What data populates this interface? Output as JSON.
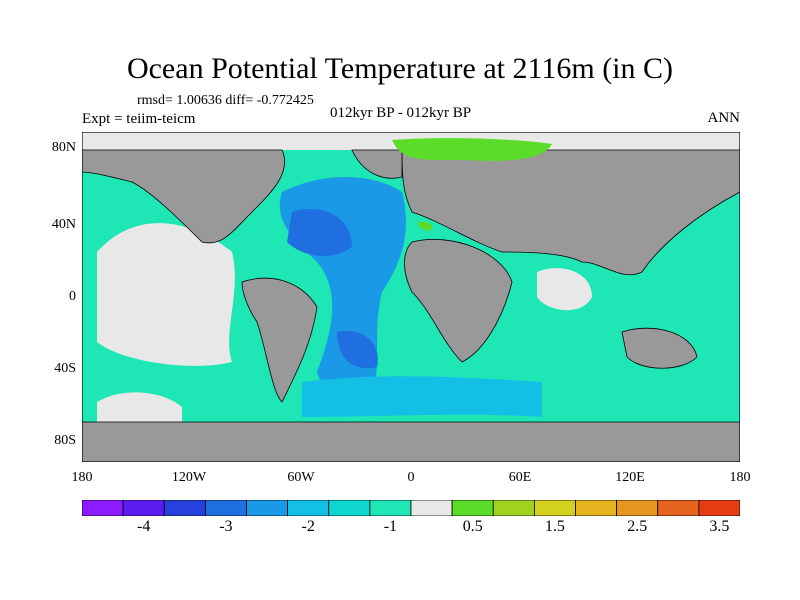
{
  "title": "Ocean Potential Temperature at 2116m (in C)",
  "stats_text": "rmsd= 1.00636 diff= -0.772425",
  "experiment_text": "Expt = teiim-teicm",
  "period_text": "012kyr BP - 012kyr BP",
  "season_text": "ANN",
  "lat_labels": [
    "80N",
    "40N",
    "0",
    "40S",
    "80S"
  ],
  "lon_labels": [
    "180",
    "120W",
    "60W",
    "0",
    "60E",
    "120E",
    "180"
  ],
  "colorbar": {
    "colors": [
      "#8a1cff",
      "#5a1cf0",
      "#2840dc",
      "#1f6fe0",
      "#1a9ae6",
      "#14bfe6",
      "#10d6d0",
      "#1ee6b4",
      "#e8e8e8",
      "#5adc28",
      "#a0d21e",
      "#d2d21e",
      "#e6b41e",
      "#e6961e",
      "#e6641e",
      "#e63c14"
    ],
    "labels": [
      "-4",
      "-3",
      "-2",
      "-1",
      "0.5",
      "1.5",
      "2.5",
      "3.5"
    ]
  }
}
